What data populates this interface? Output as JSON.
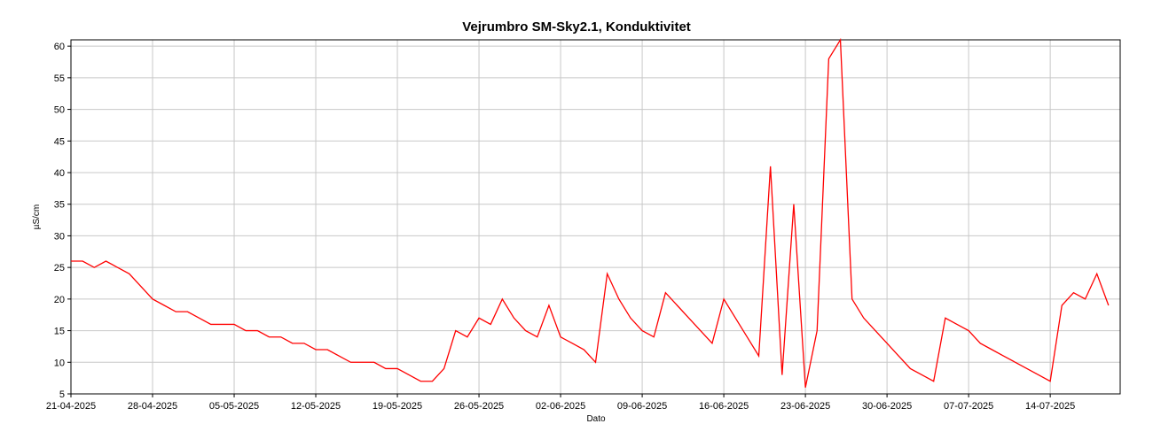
{
  "chart_data": {
    "type": "line",
    "title": "Vejrumbro SM-Sky2.1, Konduktivitet",
    "x_label": "Dato",
    "y_label": "µS/cm",
    "grid": true,
    "x": [
      "21-04-2025",
      "22-04-2025",
      "23-04-2025",
      "24-04-2025",
      "25-04-2025",
      "26-04-2025",
      "27-04-2025",
      "28-04-2025",
      "29-04-2025",
      "30-04-2025",
      "01-05-2025",
      "02-05-2025",
      "03-05-2025",
      "04-05-2025",
      "05-05-2025",
      "06-05-2025",
      "07-05-2025",
      "08-05-2025",
      "09-05-2025",
      "10-05-2025",
      "11-05-2025",
      "12-05-2025",
      "13-05-2025",
      "14-05-2025",
      "15-05-2025",
      "16-05-2025",
      "17-05-2025",
      "18-05-2025",
      "19-05-2025",
      "20-05-2025",
      "21-05-2025",
      "22-05-2025",
      "23-05-2025",
      "24-05-2025",
      "25-05-2025",
      "26-05-2025",
      "27-05-2025",
      "28-05-2025",
      "29-05-2025",
      "30-05-2025",
      "31-05-2025",
      "01-06-2025",
      "02-06-2025",
      "03-06-2025",
      "04-06-2025",
      "05-06-2025",
      "06-06-2025",
      "07-06-2025",
      "08-06-2025",
      "09-06-2025",
      "10-06-2025",
      "11-06-2025",
      "12-06-2025",
      "13-06-2025",
      "14-06-2025",
      "15-06-2025",
      "16-06-2025",
      "17-06-2025",
      "18-06-2025",
      "19-06-2025",
      "20-06-2025",
      "21-06-2025",
      "22-06-2025",
      "23-06-2025",
      "24-06-2025",
      "25-06-2025",
      "26-06-2025",
      "27-06-2025",
      "28-06-2025",
      "29-06-2025",
      "30-06-2025",
      "01-07-2025",
      "02-07-2025",
      "03-07-2025",
      "04-07-2025",
      "05-07-2025",
      "06-07-2025",
      "07-07-2025",
      "08-07-2025",
      "09-07-2025",
      "10-07-2025",
      "11-07-2025",
      "12-07-2025",
      "13-07-2025",
      "14-07-2025",
      "15-07-2025",
      "16-07-2025",
      "17-07-2025",
      "18-07-2025",
      "19-07-2025"
    ],
    "series": [
      {
        "color": "#ff0000",
        "values": [
          26,
          26,
          25,
          26,
          25,
          24,
          22,
          20,
          19,
          18,
          18,
          17,
          16,
          16,
          16,
          15,
          15,
          14,
          14,
          13,
          13,
          12,
          12,
          11,
          10,
          10,
          10,
          9,
          9,
          8,
          7,
          7,
          9,
          15,
          14,
          17,
          16,
          20,
          17,
          15,
          14,
          19,
          14,
          13,
          12,
          10,
          24,
          20,
          17,
          15,
          14,
          21,
          19,
          17,
          15,
          13,
          20,
          17,
          14,
          11,
          41,
          8,
          35,
          6,
          15,
          58,
          61,
          20,
          17,
          15,
          13,
          11,
          9,
          8,
          7,
          17,
          16,
          15,
          13,
          12,
          11,
          10,
          9,
          8,
          7,
          19,
          21,
          20,
          24,
          19
        ]
      }
    ],
    "xlim": [
      "21-04-2025",
      "20-07-2025"
    ],
    "xticks": [
      "21-04-2025",
      "28-04-2025",
      "05-05-2025",
      "12-05-2025",
      "19-05-2025",
      "26-05-2025",
      "02-06-2025",
      "09-06-2025",
      "16-06-2025",
      "23-06-2025",
      "30-06-2025",
      "07-07-2025",
      "14-07-2025"
    ],
    "ylim": [
      5,
      61
    ],
    "yticks": [
      5,
      10,
      15,
      20,
      25,
      30,
      35,
      40,
      45,
      50,
      55,
      60
    ]
  }
}
